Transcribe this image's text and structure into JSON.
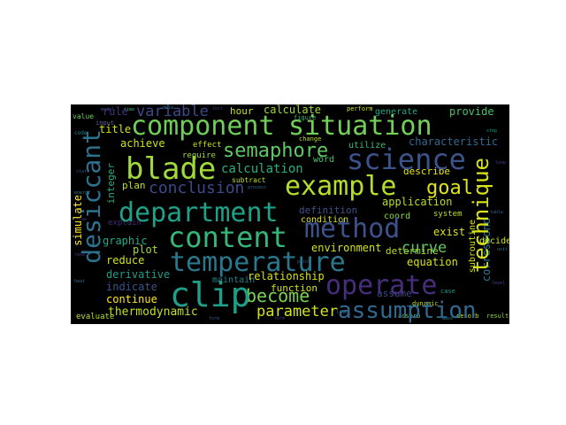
{
  "words": {
    "component": "component",
    "situation": "situation",
    "science": "science",
    "example": "example",
    "blade": "blade",
    "semaphore": "semaphore",
    "department": "department",
    "method": "method",
    "content": "content",
    "temperature": "temperature",
    "operate": "operate",
    "assumption": "assumption",
    "clip": "clip",
    "desiccant": "desiccant",
    "technique": "technique",
    "goal": "goal",
    "conclusion": "conclusion",
    "variable": "variable",
    "parameter": "parameter",
    "become": "become",
    "curve": "curve",
    "calculation": "calculation",
    "relationship": "relationship",
    "derivative": "derivative",
    "thermodynamic": "thermodynamic",
    "application": "application",
    "characteristic": "characteristic",
    "equation": "equation",
    "environment": "environment",
    "definition": "definition",
    "calculate": "calculate",
    "provide": "provide",
    "rule": "rule",
    "hour": "hour",
    "title": "title",
    "achieve": "achieve",
    "plan": "plan",
    "integer": "integer",
    "graphic": "graphic",
    "plot": "plot",
    "reduce": "reduce",
    "indicate": "indicate",
    "continue": "continue",
    "simulate": "simulate",
    "word": "word",
    "utilize": "utilize",
    "describe": "describe",
    "exist": "exist",
    "coord": "coord",
    "system": "system",
    "subroutine": "subroutine",
    "correspond": "correspond",
    "decide": "decide",
    "determine": "determine",
    "condition": "condition",
    "generate": "generate",
    "function": "function",
    "maintain": "maintain",
    "assume": "assume",
    "require": "require",
    "subtract": "subtract",
    "effect": "effect",
    "value": "value",
    "input": "input",
    "evaluate": "evaluate",
    "figure": "figure",
    "change": "change",
    "perform": "perform",
    "dynamic": "dynamic",
    "adsorb": "adsorb",
    "desorb": "desorb",
    "result": "result",
    "explain": "explain",
    "case": "case",
    "code": "code",
    "load": "load",
    "point": "point",
    "model": "model",
    "state": "state",
    "process": "process",
    "energy": "energy",
    "flow": "flow",
    "rate": "rate",
    "heat": "heat",
    "water": "water",
    "air": "air",
    "cycle": "cycle",
    "time": "time",
    "data": "data",
    "test": "test",
    "step": "step",
    "loop": "loop",
    "table": "table",
    "unit": "unit",
    "level": "level",
    "mass": "mass",
    "term": "term",
    "form": "form"
  }
}
